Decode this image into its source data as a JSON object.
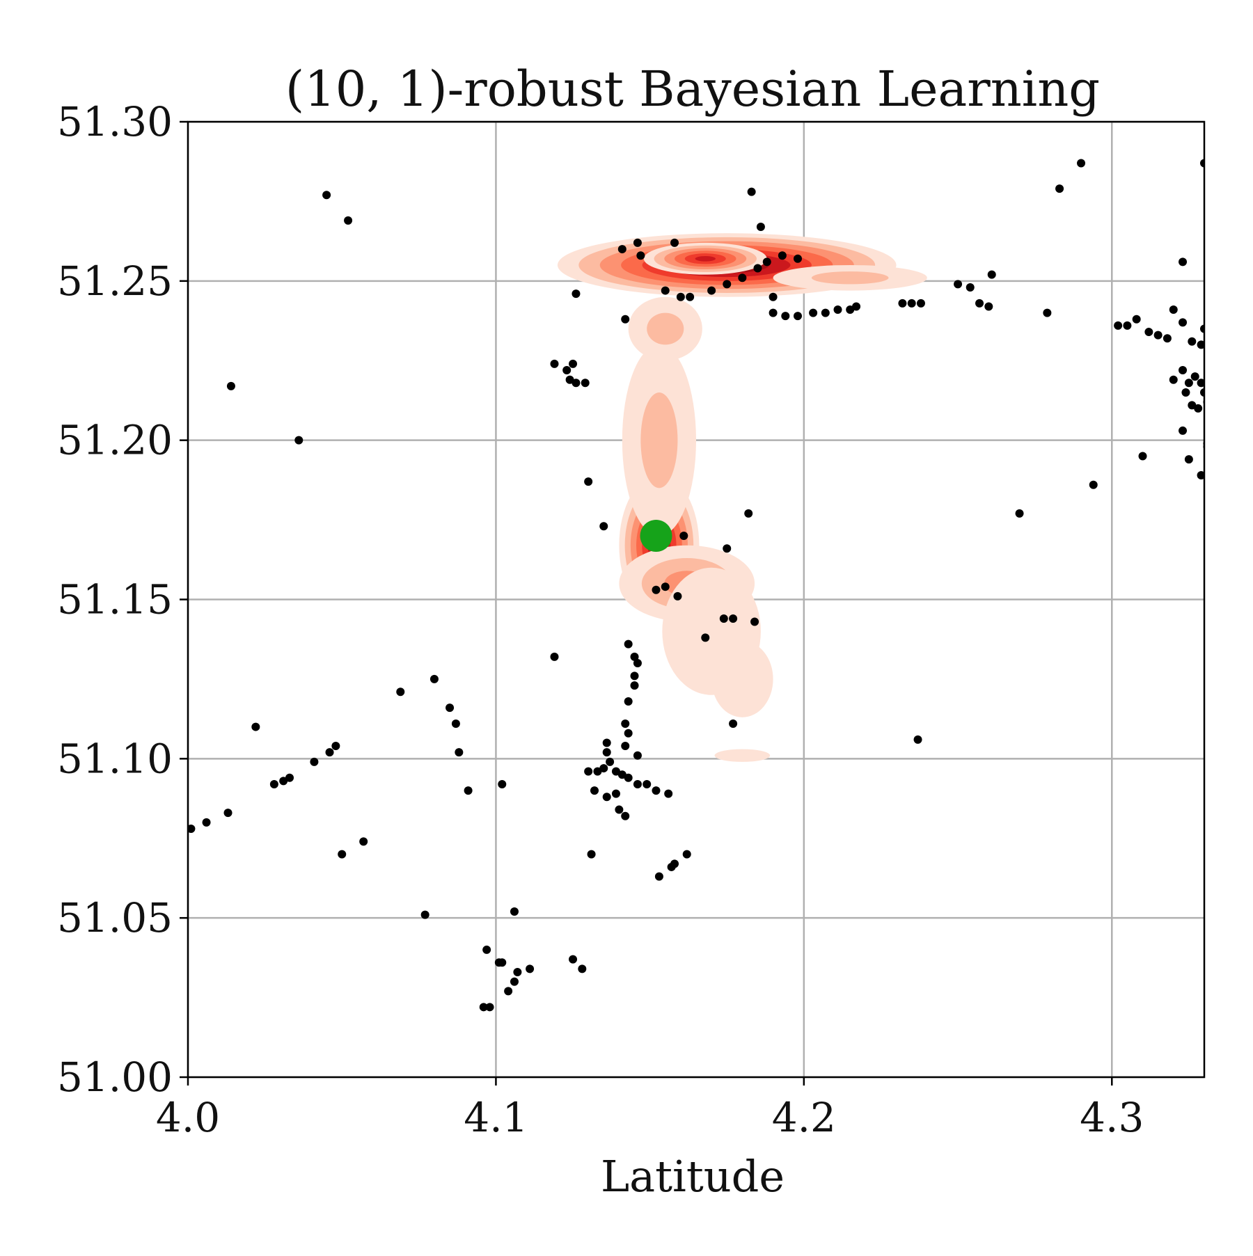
{
  "chart_data": {
    "type": "scatter",
    "title": "(10, 1)-robust Bayesian Learning",
    "xlabel": "Latitude",
    "ylabel": "",
    "xlim": [
      4.0,
      4.33
    ],
    "ylim": [
      51.0,
      51.3
    ],
    "x_ticks": [
      4.0,
      4.1,
      4.2,
      4.3
    ],
    "x_tick_labels": [
      "4.0",
      "4.1",
      "4.2",
      "4.3"
    ],
    "y_ticks": [
      51.0,
      51.05,
      51.1,
      51.15,
      51.2,
      51.25,
      51.3
    ],
    "y_tick_labels": [
      "51.00",
      "51.05",
      "51.10",
      "51.15",
      "51.20",
      "51.25",
      "51.30"
    ],
    "grid": true,
    "legend": "none",
    "colors": {
      "points": "#000000",
      "highlight": "#16a31a",
      "density_levels": [
        "#fde2d6",
        "#fcbba1",
        "#fc9272",
        "#fb6a4a",
        "#ef3b2c",
        "#cb181d",
        "#a50f15",
        "#67000d"
      ],
      "grid": "#b0b0b0",
      "axes": "#000000"
    },
    "highlight_point": {
      "x": 4.152,
      "y": 51.17
    },
    "density_blobs": [
      {
        "cx": 4.175,
        "cy": 51.255,
        "rx": 0.055,
        "ry": 0.01,
        "weight": 1.0
      },
      {
        "cx": 4.168,
        "cy": 51.257,
        "rx": 0.02,
        "ry": 0.005,
        "weight": 0.7
      },
      {
        "cx": 4.215,
        "cy": 51.251,
        "rx": 0.025,
        "ry": 0.004,
        "weight": 0.3
      },
      {
        "cx": 4.153,
        "cy": 51.167,
        "rx": 0.013,
        "ry": 0.022,
        "weight": 0.85
      },
      {
        "cx": 4.162,
        "cy": 51.155,
        "rx": 0.022,
        "ry": 0.012,
        "weight": 0.35
      },
      {
        "cx": 4.153,
        "cy": 51.2,
        "rx": 0.012,
        "ry": 0.03,
        "weight": 0.22
      },
      {
        "cx": 4.155,
        "cy": 51.235,
        "rx": 0.012,
        "ry": 0.01,
        "weight": 0.2
      },
      {
        "cx": 4.17,
        "cy": 51.14,
        "rx": 0.016,
        "ry": 0.02,
        "weight": 0.12
      },
      {
        "cx": 4.18,
        "cy": 51.125,
        "rx": 0.01,
        "ry": 0.012,
        "weight": 0.1
      },
      {
        "cx": 4.18,
        "cy": 51.101,
        "rx": 0.009,
        "ry": 0.002,
        "weight": 0.08
      }
    ],
    "points": [
      [
        4.045,
        51.277
      ],
      [
        4.052,
        51.269
      ],
      [
        4.014,
        51.217
      ],
      [
        4.036,
        51.2
      ],
      [
        4.183,
        51.278
      ],
      [
        4.186,
        51.267
      ],
      [
        4.141,
        51.26
      ],
      [
        4.146,
        51.262
      ],
      [
        4.147,
        51.258
      ],
      [
        4.158,
        51.262
      ],
      [
        4.155,
        51.247
      ],
      [
        4.16,
        51.245
      ],
      [
        4.163,
        51.245
      ],
      [
        4.17,
        51.247
      ],
      [
        4.175,
        51.249
      ],
      [
        4.18,
        51.251
      ],
      [
        4.185,
        51.254
      ],
      [
        4.188,
        51.256
      ],
      [
        4.193,
        51.258
      ],
      [
        4.198,
        51.257
      ],
      [
        4.19,
        51.245
      ],
      [
        4.19,
        51.24
      ],
      [
        4.194,
        51.239
      ],
      [
        4.198,
        51.239
      ],
      [
        4.203,
        51.24
      ],
      [
        4.207,
        51.24
      ],
      [
        4.211,
        51.241
      ],
      [
        4.215,
        51.241
      ],
      [
        4.217,
        51.242
      ],
      [
        4.232,
        51.243
      ],
      [
        4.235,
        51.243
      ],
      [
        4.238,
        51.243
      ],
      [
        4.25,
        51.249
      ],
      [
        4.254,
        51.248
      ],
      [
        4.257,
        51.243
      ],
      [
        4.26,
        51.242
      ],
      [
        4.261,
        51.252
      ],
      [
        4.279,
        51.24
      ],
      [
        4.283,
        51.279
      ],
      [
        4.29,
        51.287
      ],
      [
        4.323,
        51.256
      ],
      [
        4.33,
        51.287
      ],
      [
        4.302,
        51.236
      ],
      [
        4.305,
        51.236
      ],
      [
        4.308,
        51.238
      ],
      [
        4.312,
        51.234
      ],
      [
        4.315,
        51.233
      ],
      [
        4.318,
        51.232
      ],
      [
        4.32,
        51.241
      ],
      [
        4.323,
        51.237
      ],
      [
        4.326,
        51.231
      ],
      [
        4.329,
        51.23
      ],
      [
        4.33,
        51.235
      ],
      [
        4.32,
        51.219
      ],
      [
        4.323,
        51.222
      ],
      [
        4.325,
        51.218
      ],
      [
        4.327,
        51.22
      ],
      [
        4.329,
        51.218
      ],
      [
        4.33,
        51.215
      ],
      [
        4.324,
        51.215
      ],
      [
        4.326,
        51.211
      ],
      [
        4.328,
        51.21
      ],
      [
        4.331,
        51.212
      ],
      [
        4.323,
        51.203
      ],
      [
        4.331,
        51.199
      ],
      [
        4.331,
        51.198
      ],
      [
        4.31,
        51.195
      ],
      [
        4.325,
        51.194
      ],
      [
        4.329,
        51.189
      ],
      [
        4.294,
        51.186
      ],
      [
        4.27,
        51.177
      ],
      [
        4.142,
        51.238
      ],
      [
        4.126,
        51.246
      ],
      [
        4.119,
        51.224
      ],
      [
        4.123,
        51.222
      ],
      [
        4.125,
        51.224
      ],
      [
        4.124,
        51.219
      ],
      [
        4.126,
        51.218
      ],
      [
        4.129,
        51.218
      ],
      [
        4.13,
        51.187
      ],
      [
        4.135,
        51.173
      ],
      [
        4.161,
        51.17
      ],
      [
        4.182,
        51.177
      ],
      [
        4.175,
        51.166
      ],
      [
        4.152,
        51.153
      ],
      [
        4.155,
        51.154
      ],
      [
        4.159,
        51.151
      ],
      [
        4.174,
        51.144
      ],
      [
        4.177,
        51.144
      ],
      [
        4.184,
        51.143
      ],
      [
        4.168,
        51.138
      ],
      [
        4.177,
        51.111
      ],
      [
        4.119,
        51.132
      ],
      [
        4.143,
        51.136
      ],
      [
        4.145,
        51.132
      ],
      [
        4.146,
        51.13
      ],
      [
        4.145,
        51.126
      ],
      [
        4.145,
        51.123
      ],
      [
        4.143,
        51.118
      ],
      [
        4.142,
        51.111
      ],
      [
        4.143,
        51.108
      ],
      [
        4.136,
        51.105
      ],
      [
        4.136,
        51.102
      ],
      [
        4.142,
        51.104
      ],
      [
        4.146,
        51.101
      ],
      [
        4.13,
        51.096
      ],
      [
        4.133,
        51.096
      ],
      [
        4.135,
        51.097
      ],
      [
        4.137,
        51.099
      ],
      [
        4.139,
        51.096
      ],
      [
        4.141,
        51.095
      ],
      [
        4.143,
        51.094
      ],
      [
        4.146,
        51.092
      ],
      [
        4.149,
        51.092
      ],
      [
        4.152,
        51.09
      ],
      [
        4.156,
        51.089
      ],
      [
        4.132,
        51.09
      ],
      [
        4.136,
        51.088
      ],
      [
        4.139,
        51.089
      ],
      [
        4.14,
        51.084
      ],
      [
        4.142,
        51.082
      ],
      [
        4.131,
        51.07
      ],
      [
        4.153,
        51.063
      ],
      [
        4.157,
        51.066
      ],
      [
        4.158,
        51.067
      ],
      [
        4.162,
        51.07
      ],
      [
        4.069,
        51.121
      ],
      [
        4.08,
        51.125
      ],
      [
        4.085,
        51.116
      ],
      [
        4.087,
        51.111
      ],
      [
        4.088,
        51.102
      ],
      [
        4.091,
        51.09
      ],
      [
        4.102,
        51.092
      ],
      [
        4.022,
        51.11
      ],
      [
        4.041,
        51.099
      ],
      [
        4.046,
        51.102
      ],
      [
        4.048,
        51.104
      ],
      [
        4.028,
        51.092
      ],
      [
        4.031,
        51.093
      ],
      [
        4.033,
        51.094
      ],
      [
        4.05,
        51.07
      ],
      [
        4.057,
        51.074
      ],
      [
        4.001,
        51.078
      ],
      [
        4.006,
        51.08
      ],
      [
        4.013,
        51.083
      ],
      [
        4.077,
        51.051
      ],
      [
        4.106,
        51.052
      ],
      [
        4.097,
        51.04
      ],
      [
        4.101,
        51.036
      ],
      [
        4.102,
        51.036
      ],
      [
        4.107,
        51.033
      ],
      [
        4.111,
        51.034
      ],
      [
        4.104,
        51.027
      ],
      [
        4.106,
        51.03
      ],
      [
        4.096,
        51.022
      ],
      [
        4.098,
        51.022
      ],
      [
        4.125,
        51.037
      ],
      [
        4.128,
        51.034
      ],
      [
        4.237,
        51.106
      ]
    ]
  }
}
